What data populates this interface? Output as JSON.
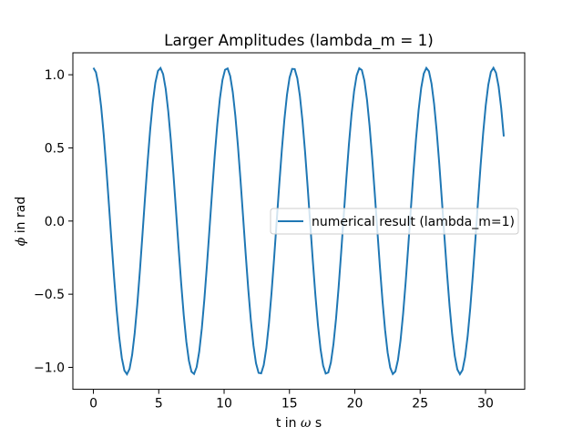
{
  "chart_data": {
    "type": "line",
    "title": "Larger Amplitudes (lambda_m = 1)",
    "xlabel_parts": [
      "t in ",
      "ω",
      " s"
    ],
    "ylabel_parts": [
      "ϕ",
      " in rad"
    ],
    "xlim": [
      -1.5714,
      33.0
    ],
    "ylim": [
      -1.15,
      1.15
    ],
    "xticks": [
      0,
      5,
      10,
      15,
      20,
      25,
      30
    ],
    "yticks": [
      -1.0,
      -0.5,
      0.0,
      0.5,
      1.0
    ],
    "xtick_labels": [
      "0",
      "5",
      "10",
      "15",
      "20",
      "25",
      "30"
    ],
    "ytick_labels": [
      "−1.0",
      "−0.5",
      "0.0",
      "0.5",
      "1.0"
    ],
    "grid": false,
    "legend": "center-right",
    "series": [
      {
        "name": "numerical result (lambda_m=1)",
        "color": "#1f77b4",
        "amplitude": 1.047,
        "period": 5.1,
        "t_start": 0,
        "t_end": 31.4,
        "points": 160
      }
    ]
  }
}
